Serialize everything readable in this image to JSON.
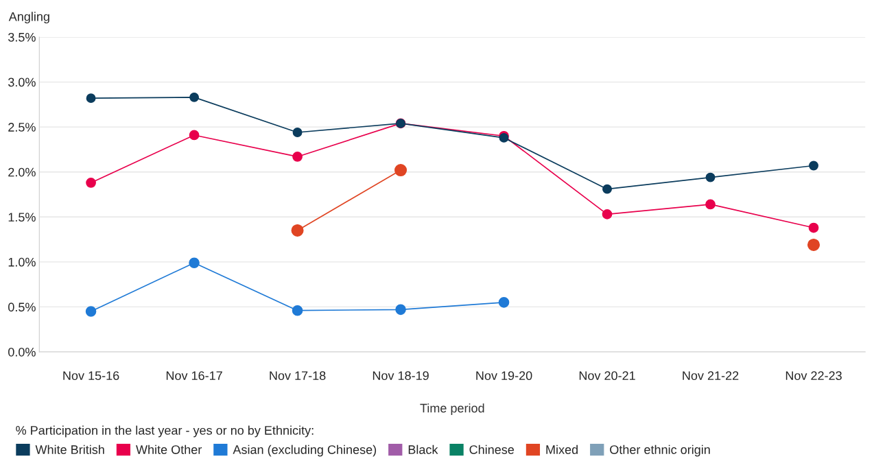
{
  "chart_data": {
    "type": "line",
    "title": "Angling",
    "xlabel": "Time period",
    "legend_title": "% Participation in the last year - yes or no by Ethnicity:",
    "categories": [
      "Nov 15-16",
      "Nov 16-17",
      "Nov 17-18",
      "Nov 18-19",
      "Nov 19-20",
      "Nov 20-21",
      "Nov 21-22",
      "Nov 22-23"
    ],
    "series": [
      {
        "name": "White British",
        "color": "#0b3c5d",
        "values": [
          2.82,
          2.83,
          2.44,
          2.54,
          2.38,
          1.81,
          1.94,
          2.07
        ]
      },
      {
        "name": "White Other",
        "color": "#e8004c",
        "values": [
          1.88,
          2.41,
          2.17,
          2.54,
          2.4,
          1.53,
          1.64,
          1.38
        ]
      },
      {
        "name": "Asian (excluding Chinese)",
        "color": "#1f7ad6",
        "values": [
          0.45,
          0.99,
          0.46,
          0.47,
          0.55,
          null,
          null,
          null
        ]
      },
      {
        "name": "Black",
        "color": "#a15ca8",
        "values": [
          null,
          null,
          null,
          null,
          null,
          null,
          null,
          null
        ]
      },
      {
        "name": "Chinese",
        "color": "#0a8265",
        "values": [
          null,
          null,
          null,
          null,
          null,
          null,
          null,
          null
        ]
      },
      {
        "name": "Mixed",
        "color": "#e04523",
        "values": [
          null,
          null,
          1.35,
          2.02,
          null,
          null,
          null,
          1.19
        ]
      },
      {
        "name": "Other ethnic origin",
        "color": "#7fa0b8",
        "values": [
          null,
          null,
          null,
          null,
          null,
          null,
          null,
          null
        ]
      }
    ],
    "ylim": [
      0,
      3.5
    ],
    "yticks": [
      {
        "value": 0,
        "label": "0.0%"
      },
      {
        "value": 0.5,
        "label": "0.5%"
      },
      {
        "value": 1,
        "label": "1.0%"
      },
      {
        "value": 1.5,
        "label": "1.5%"
      },
      {
        "value": 2,
        "label": "2.0%"
      },
      {
        "value": 2.5,
        "label": "2.5%"
      },
      {
        "value": 3,
        "label": "3.0%"
      },
      {
        "value": 3.5,
        "label": "3.5%"
      }
    ],
    "grid": "y",
    "legend": "bottom",
    "marker": "circle",
    "line_style": "solid"
  }
}
